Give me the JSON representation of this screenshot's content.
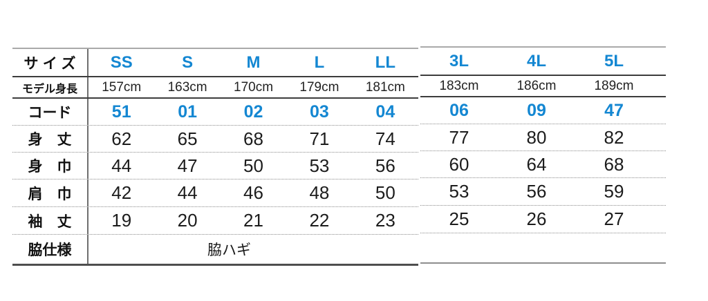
{
  "colors": {
    "accent_blue": "#1487d2",
    "text_dark": "#1c1c1c"
  },
  "size_chart": {
    "labels": {
      "size": "サイズ",
      "model_height": "モデル身長",
      "code": "コード",
      "body_length": "身　丈",
      "body_width": "身　巾",
      "shoulder_width": "肩　巾",
      "sleeve_length": "袖　丈",
      "side_spec": "脇仕様"
    },
    "main": {
      "sizes": [
        "SS",
        "S",
        "M",
        "L",
        "LL"
      ],
      "model_heights": [
        "157cm",
        "163cm",
        "170cm",
        "179cm",
        "181cm"
      ],
      "codes": [
        "51",
        "01",
        "02",
        "03",
        "04"
      ],
      "body_length": [
        "62",
        "65",
        "68",
        "71",
        "74"
      ],
      "body_width": [
        "44",
        "47",
        "50",
        "53",
        "56"
      ],
      "shoulder_width": [
        "42",
        "44",
        "46",
        "48",
        "50"
      ],
      "sleeve_length": [
        "19",
        "20",
        "21",
        "22",
        "23"
      ],
      "side_spec_value": "脇ハギ"
    },
    "extended": {
      "sizes": [
        "3L",
        "4L",
        "5L"
      ],
      "model_heights": [
        "183cm",
        "186cm",
        "189cm"
      ],
      "codes": [
        "06",
        "09",
        "47"
      ],
      "body_length": [
        "77",
        "80",
        "82"
      ],
      "body_width": [
        "60",
        "64",
        "68"
      ],
      "shoulder_width": [
        "53",
        "56",
        "59"
      ],
      "sleeve_length": [
        "25",
        "26",
        "27"
      ]
    }
  }
}
